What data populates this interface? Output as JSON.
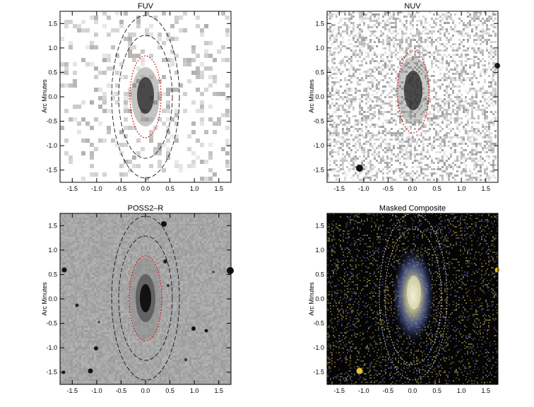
{
  "panels": [
    {
      "id": "fuv",
      "title": "FUV",
      "ylabel": "Arc Minutes",
      "xticks": [
        "-1.5",
        "-1.0",
        "-0.5",
        "0.0",
        "0.5",
        "1.0",
        "1.5"
      ],
      "yticks": [
        "1.5",
        "1.0",
        "0.5",
        "0.0",
        "-0.5",
        "-1.0",
        "-1.5"
      ],
      "style": "fuv"
    },
    {
      "id": "nuv",
      "title": "NUV",
      "ylabel": "Arc Minutes",
      "xticks": [
        "-1.5",
        "-1.0",
        "-0.5",
        "0.0",
        "0.5",
        "1.0",
        "1.5"
      ],
      "yticks": [
        "1.5",
        "1.0",
        "0.5",
        "0.0",
        "-0.5",
        "-1.0",
        "-1.5"
      ],
      "style": "nuv"
    },
    {
      "id": "poss",
      "title": "POSS2–R",
      "ylabel": "Arc Minutes",
      "xticks": [
        "-1.5",
        "-1.0",
        "-0.5",
        "0.0",
        "0.5",
        "1.0",
        "1.5"
      ],
      "yticks": [
        "1.5",
        "1.0",
        "0.5",
        "0.0",
        "-0.5",
        "-1.0",
        "-1.5"
      ],
      "style": "poss"
    },
    {
      "id": "composite",
      "title": "Masked Composite",
      "ylabel": "Arc Minutes",
      "xticks": [
        "-1.5",
        "-1.0",
        "-0.5",
        "0.0",
        "0.5",
        "1.0",
        "1.5"
      ],
      "yticks": [
        "1.5",
        "1.0",
        "0.5",
        "0.0",
        "-0.5",
        "-1.0",
        "-1.5"
      ],
      "style": "composite"
    }
  ],
  "colors": {
    "inner_ellipse": "#d00000",
    "outer_ellipse": "#000000",
    "composite_ellipse": "#dddddd",
    "frame": "#000000"
  }
}
